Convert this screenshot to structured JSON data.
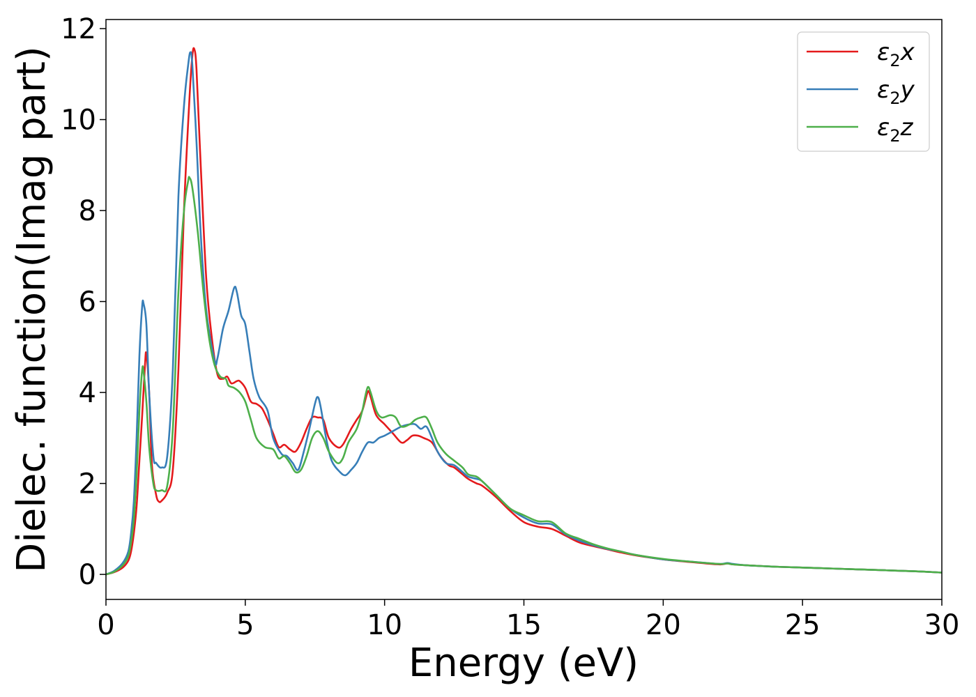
{
  "chart_data": {
    "type": "line",
    "xlabel": "Energy (eV)",
    "ylabel": "Dielec. function(Imag part)",
    "xlim": [
      0,
      30
    ],
    "ylim": [
      -0.55,
      12.2
    ],
    "xticks": [
      0,
      5,
      10,
      15,
      20,
      25,
      30
    ],
    "yticks": [
      0,
      2,
      4,
      6,
      8,
      10,
      12
    ],
    "xtick_labels": [
      "0",
      "5",
      "10",
      "15",
      "20",
      "25",
      "30"
    ],
    "ytick_labels": [
      "0",
      "2",
      "4",
      "6",
      "8",
      "10",
      "12"
    ],
    "grid": false,
    "legend_position": "top-right",
    "series": [
      {
        "name": "ε₂x",
        "legend_base": "ε",
        "legend_sub": "2",
        "legend_tail": "x",
        "color": "#e41a1c",
        "points": [
          [
            0,
            0
          ],
          [
            0.3,
            0.05
          ],
          [
            0.6,
            0.15
          ],
          [
            0.8,
            0.3
          ],
          [
            0.9,
            0.5
          ],
          [
            1.0,
            0.9
          ],
          [
            1.1,
            1.5
          ],
          [
            1.2,
            2.5
          ],
          [
            1.3,
            3.5
          ],
          [
            1.4,
            4.6
          ],
          [
            1.45,
            4.85
          ],
          [
            1.55,
            4.0
          ],
          [
            1.65,
            2.4
          ],
          [
            1.8,
            1.75
          ],
          [
            1.9,
            1.6
          ],
          [
            2.0,
            1.62
          ],
          [
            2.2,
            1.8
          ],
          [
            2.4,
            2.3
          ],
          [
            2.6,
            4.5
          ],
          [
            2.8,
            8.0
          ],
          [
            3.0,
            10.5
          ],
          [
            3.1,
            11.4
          ],
          [
            3.17,
            11.55
          ],
          [
            3.25,
            11.1
          ],
          [
            3.4,
            9.0
          ],
          [
            3.6,
            6.5
          ],
          [
            3.8,
            5.2
          ],
          [
            4.0,
            4.4
          ],
          [
            4.2,
            4.3
          ],
          [
            4.35,
            4.35
          ],
          [
            4.5,
            4.2
          ],
          [
            4.7,
            4.25
          ],
          [
            4.8,
            4.25
          ],
          [
            5.0,
            4.1
          ],
          [
            5.2,
            3.8
          ],
          [
            5.4,
            3.75
          ],
          [
            5.6,
            3.65
          ],
          [
            5.8,
            3.4
          ],
          [
            6.0,
            3.1
          ],
          [
            6.2,
            2.8
          ],
          [
            6.4,
            2.85
          ],
          [
            6.6,
            2.75
          ],
          [
            6.8,
            2.7
          ],
          [
            7.0,
            2.9
          ],
          [
            7.2,
            3.2
          ],
          [
            7.4,
            3.45
          ],
          [
            7.6,
            3.45
          ],
          [
            7.8,
            3.4
          ],
          [
            8.0,
            3.0
          ],
          [
            8.3,
            2.8
          ],
          [
            8.5,
            2.85
          ],
          [
            8.8,
            3.2
          ],
          [
            9.0,
            3.4
          ],
          [
            9.2,
            3.6
          ],
          [
            9.4,
            4.02
          ],
          [
            9.5,
            3.9
          ],
          [
            9.7,
            3.5
          ],
          [
            10.0,
            3.3
          ],
          [
            10.3,
            3.1
          ],
          [
            10.6,
            2.9
          ],
          [
            10.8,
            2.95
          ],
          [
            11.0,
            3.05
          ],
          [
            11.2,
            3.05
          ],
          [
            11.4,
            3.0
          ],
          [
            11.7,
            2.9
          ],
          [
            12.0,
            2.6
          ],
          [
            12.3,
            2.4
          ],
          [
            12.5,
            2.35
          ],
          [
            12.8,
            2.2
          ],
          [
            13.0,
            2.1
          ],
          [
            13.3,
            2.0
          ],
          [
            13.5,
            1.95
          ],
          [
            14.0,
            1.7
          ],
          [
            14.5,
            1.4
          ],
          [
            15.0,
            1.15
          ],
          [
            15.5,
            1.05
          ],
          [
            16.0,
            1.0
          ],
          [
            16.5,
            0.85
          ],
          [
            17.0,
            0.7
          ],
          [
            17.5,
            0.62
          ],
          [
            18.0,
            0.55
          ],
          [
            18.5,
            0.48
          ],
          [
            19.0,
            0.42
          ],
          [
            20.0,
            0.33
          ],
          [
            21.0,
            0.27
          ],
          [
            22.0,
            0.22
          ],
          [
            22.3,
            0.24
          ],
          [
            22.5,
            0.22
          ],
          [
            23.0,
            0.2
          ],
          [
            24.0,
            0.17
          ],
          [
            25.0,
            0.15
          ],
          [
            26.0,
            0.13
          ],
          [
            27.0,
            0.11
          ],
          [
            28.0,
            0.09
          ],
          [
            29.0,
            0.07
          ],
          [
            30.0,
            0.04
          ]
        ]
      },
      {
        "name": "ε₂y",
        "legend_base": "ε",
        "legend_sub": "2",
        "legend_tail": "y",
        "color": "#377eb8",
        "points": [
          [
            0,
            0
          ],
          [
            0.3,
            0.08
          ],
          [
            0.6,
            0.25
          ],
          [
            0.8,
            0.5
          ],
          [
            0.9,
            0.9
          ],
          [
            1.0,
            1.6
          ],
          [
            1.1,
            3.0
          ],
          [
            1.2,
            4.8
          ],
          [
            1.3,
            5.9
          ],
          [
            1.35,
            5.95
          ],
          [
            1.45,
            5.5
          ],
          [
            1.55,
            4.0
          ],
          [
            1.7,
            2.6
          ],
          [
            1.8,
            2.45
          ],
          [
            2.0,
            2.35
          ],
          [
            2.2,
            2.6
          ],
          [
            2.4,
            4.5
          ],
          [
            2.6,
            8.3
          ],
          [
            2.8,
            10.3
          ],
          [
            2.95,
            11.2
          ],
          [
            3.03,
            11.48
          ],
          [
            3.1,
            11.2
          ],
          [
            3.25,
            9.5
          ],
          [
            3.4,
            7.5
          ],
          [
            3.6,
            5.8
          ],
          [
            3.9,
            4.7
          ],
          [
            4.0,
            4.75
          ],
          [
            4.2,
            5.4
          ],
          [
            4.4,
            5.8
          ],
          [
            4.6,
            6.3
          ],
          [
            4.7,
            6.2
          ],
          [
            4.85,
            5.7
          ],
          [
            5.0,
            5.5
          ],
          [
            5.15,
            4.9
          ],
          [
            5.3,
            4.3
          ],
          [
            5.5,
            3.9
          ],
          [
            5.8,
            3.6
          ],
          [
            6.0,
            3.0
          ],
          [
            6.3,
            2.65
          ],
          [
            6.5,
            2.6
          ],
          [
            6.7,
            2.45
          ],
          [
            6.9,
            2.3
          ],
          [
            7.1,
            2.7
          ],
          [
            7.3,
            3.2
          ],
          [
            7.5,
            3.75
          ],
          [
            7.6,
            3.9
          ],
          [
            7.7,
            3.7
          ],
          [
            7.9,
            3.0
          ],
          [
            8.1,
            2.5
          ],
          [
            8.4,
            2.25
          ],
          [
            8.6,
            2.18
          ],
          [
            8.8,
            2.3
          ],
          [
            9.0,
            2.45
          ],
          [
            9.2,
            2.7
          ],
          [
            9.4,
            2.9
          ],
          [
            9.6,
            2.9
          ],
          [
            9.8,
            3.0
          ],
          [
            10.0,
            3.05
          ],
          [
            10.3,
            3.15
          ],
          [
            10.6,
            3.25
          ],
          [
            10.9,
            3.3
          ],
          [
            11.1,
            3.3
          ],
          [
            11.3,
            3.2
          ],
          [
            11.5,
            3.25
          ],
          [
            11.7,
            3.0
          ],
          [
            11.9,
            2.7
          ],
          [
            12.2,
            2.45
          ],
          [
            12.5,
            2.4
          ],
          [
            12.8,
            2.25
          ],
          [
            13.0,
            2.15
          ],
          [
            13.3,
            2.1
          ],
          [
            13.5,
            2.05
          ],
          [
            14.0,
            1.75
          ],
          [
            14.5,
            1.45
          ],
          [
            15.0,
            1.25
          ],
          [
            15.5,
            1.12
          ],
          [
            16.0,
            1.1
          ],
          [
            16.5,
            0.88
          ],
          [
            17.0,
            0.74
          ],
          [
            17.5,
            0.64
          ],
          [
            18.0,
            0.56
          ],
          [
            18.5,
            0.5
          ],
          [
            19.0,
            0.43
          ],
          [
            20.0,
            0.33
          ],
          [
            21.0,
            0.28
          ],
          [
            22.0,
            0.23
          ],
          [
            22.3,
            0.25
          ],
          [
            22.5,
            0.23
          ],
          [
            23.0,
            0.2
          ],
          [
            24.0,
            0.17
          ],
          [
            25.0,
            0.15
          ],
          [
            26.0,
            0.13
          ],
          [
            27.0,
            0.11
          ],
          [
            28.0,
            0.09
          ],
          [
            29.0,
            0.07
          ],
          [
            30.0,
            0.04
          ]
        ]
      },
      {
        "name": "ε₂z",
        "legend_base": "ε",
        "legend_sub": "2",
        "legend_tail": "z",
        "color": "#4daf4a",
        "points": [
          [
            0,
            0
          ],
          [
            0.3,
            0.06
          ],
          [
            0.6,
            0.2
          ],
          [
            0.8,
            0.4
          ],
          [
            0.9,
            0.7
          ],
          [
            1.0,
            1.2
          ],
          [
            1.1,
            2.2
          ],
          [
            1.2,
            3.6
          ],
          [
            1.3,
            4.5
          ],
          [
            1.35,
            4.45
          ],
          [
            1.45,
            3.8
          ],
          [
            1.55,
            2.8
          ],
          [
            1.7,
            2.0
          ],
          [
            1.8,
            1.85
          ],
          [
            2.0,
            1.85
          ],
          [
            2.2,
            1.95
          ],
          [
            2.4,
            3.2
          ],
          [
            2.6,
            6.2
          ],
          [
            2.8,
            8.0
          ],
          [
            2.95,
            8.65
          ],
          [
            3.0,
            8.72
          ],
          [
            3.1,
            8.5
          ],
          [
            3.3,
            7.5
          ],
          [
            3.5,
            6.2
          ],
          [
            3.7,
            5.2
          ],
          [
            3.9,
            4.6
          ],
          [
            4.1,
            4.35
          ],
          [
            4.3,
            4.3
          ],
          [
            4.4,
            4.15
          ],
          [
            4.6,
            4.1
          ],
          [
            4.8,
            4.0
          ],
          [
            5.0,
            3.8
          ],
          [
            5.2,
            3.4
          ],
          [
            5.4,
            3.0
          ],
          [
            5.7,
            2.8
          ],
          [
            6.0,
            2.75
          ],
          [
            6.2,
            2.55
          ],
          [
            6.4,
            2.6
          ],
          [
            6.6,
            2.45
          ],
          [
            6.8,
            2.25
          ],
          [
            7.0,
            2.3
          ],
          [
            7.2,
            2.6
          ],
          [
            7.4,
            3.0
          ],
          [
            7.6,
            3.15
          ],
          [
            7.8,
            3.0
          ],
          [
            8.0,
            2.7
          ],
          [
            8.3,
            2.45
          ],
          [
            8.5,
            2.55
          ],
          [
            8.7,
            2.9
          ],
          [
            9.0,
            3.2
          ],
          [
            9.2,
            3.6
          ],
          [
            9.3,
            3.9
          ],
          [
            9.4,
            4.12
          ],
          [
            9.5,
            4.0
          ],
          [
            9.7,
            3.6
          ],
          [
            9.9,
            3.45
          ],
          [
            10.2,
            3.5
          ],
          [
            10.4,
            3.45
          ],
          [
            10.6,
            3.25
          ],
          [
            10.9,
            3.3
          ],
          [
            11.1,
            3.4
          ],
          [
            11.3,
            3.45
          ],
          [
            11.5,
            3.45
          ],
          [
            11.7,
            3.2
          ],
          [
            11.9,
            2.9
          ],
          [
            12.2,
            2.65
          ],
          [
            12.5,
            2.5
          ],
          [
            12.8,
            2.35
          ],
          [
            13.0,
            2.2
          ],
          [
            13.3,
            2.15
          ],
          [
            13.5,
            2.05
          ],
          [
            14.0,
            1.75
          ],
          [
            14.5,
            1.45
          ],
          [
            15.0,
            1.3
          ],
          [
            15.5,
            1.17
          ],
          [
            16.0,
            1.15
          ],
          [
            16.5,
            0.9
          ],
          [
            17.0,
            0.78
          ],
          [
            17.5,
            0.66
          ],
          [
            18.0,
            0.57
          ],
          [
            18.5,
            0.5
          ],
          [
            19.0,
            0.43
          ],
          [
            20.0,
            0.34
          ],
          [
            21.0,
            0.28
          ],
          [
            22.0,
            0.23
          ],
          [
            22.3,
            0.24
          ],
          [
            22.5,
            0.22
          ],
          [
            23.0,
            0.2
          ],
          [
            24.0,
            0.17
          ],
          [
            25.0,
            0.15
          ],
          [
            26.0,
            0.13
          ],
          [
            27.0,
            0.11
          ],
          [
            28.0,
            0.09
          ],
          [
            29.0,
            0.07
          ],
          [
            30.0,
            0.04
          ]
        ]
      }
    ]
  }
}
